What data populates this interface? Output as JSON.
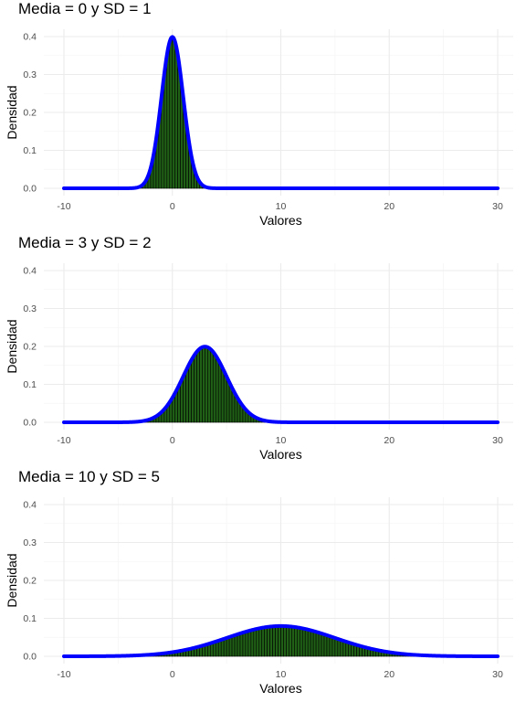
{
  "chart_data": [
    {
      "type": "bar",
      "title": "Media = 0 y SD = 1",
      "xlabel": "Valores",
      "ylabel": "Densidad",
      "mean": 0,
      "sd": 1,
      "xlim": [
        -10,
        30
      ],
      "ylim": [
        0,
        0.4
      ],
      "x_ticks": [
        "-10",
        "0",
        "10",
        "20",
        "30"
      ],
      "y_ticks": [
        "0.0",
        "0.1",
        "0.2",
        "0.3",
        "0.4"
      ],
      "bar_color": "#1f5f16",
      "line_color": "#0000ff",
      "grid": true,
      "legend": "none"
    },
    {
      "type": "bar",
      "title": "Media = 3 y SD = 2",
      "xlabel": "Valores",
      "ylabel": "Densidad",
      "mean": 3,
      "sd": 2,
      "xlim": [
        -10,
        30
      ],
      "ylim": [
        0,
        0.4
      ],
      "x_ticks": [
        "-10",
        "0",
        "10",
        "20",
        "30"
      ],
      "y_ticks": [
        "0.0",
        "0.1",
        "0.2",
        "0.3",
        "0.4"
      ],
      "bar_color": "#1f5f16",
      "line_color": "#0000ff",
      "grid": true,
      "legend": "none"
    },
    {
      "type": "bar",
      "title": "Media = 10 y SD = 5",
      "xlabel": "Valores",
      "ylabel": "Densidad",
      "mean": 10,
      "sd": 5,
      "xlim": [
        -10,
        30
      ],
      "ylim": [
        0,
        0.4
      ],
      "x_ticks": [
        "-10",
        "0",
        "10",
        "20",
        "30"
      ],
      "y_ticks": [
        "0.0",
        "0.1",
        "0.2",
        "0.3",
        "0.4"
      ],
      "bar_color": "#1f5f16",
      "line_color": "#0000ff",
      "grid": true,
      "legend": "none"
    }
  ]
}
